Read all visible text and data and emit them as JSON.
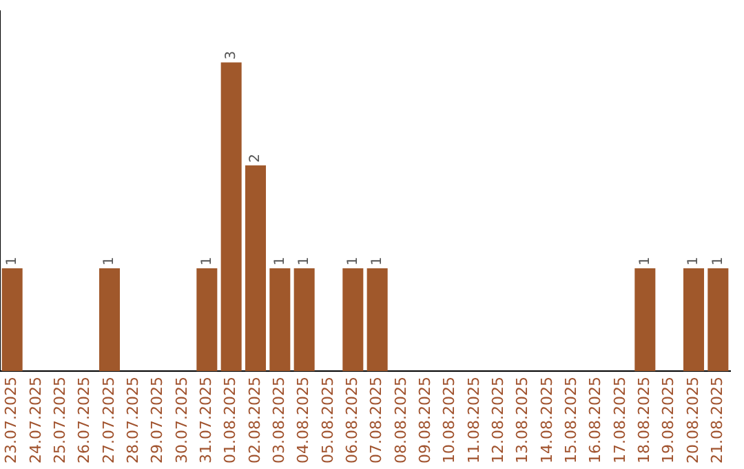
{
  "chart_data": {
    "type": "bar",
    "categories": [
      "23.07.2025",
      "24.07.2025",
      "25.07.2025",
      "26.07.2025",
      "27.07.2025",
      "28.07.2025",
      "29.07.2025",
      "30.07.2025",
      "31.07.2025",
      "01.08.2025",
      "02.08.2025",
      "03.08.2025",
      "04.08.2025",
      "05.08.2025",
      "06.08.2025",
      "07.08.2025",
      "08.08.2025",
      "09.08.2025",
      "10.08.2025",
      "11.08.2025",
      "12.08.2025",
      "13.08.2025",
      "14.08.2025",
      "15.08.2025",
      "16.08.2025",
      "17.08.2025",
      "18.08.2025",
      "19.08.2025",
      "20.08.2025",
      "21.08.2025"
    ],
    "values": [
      1,
      0,
      0,
      0,
      1,
      0,
      0,
      0,
      1,
      3,
      2,
      1,
      1,
      0,
      1,
      1,
      0,
      0,
      0,
      0,
      0,
      0,
      0,
      0,
      0,
      0,
      1,
      0,
      1,
      1
    ],
    "value_labels": [
      "1",
      null,
      null,
      null,
      "1",
      null,
      null,
      null,
      "1",
      "3",
      "2",
      "1",
      "1",
      null,
      "1",
      "1",
      null,
      null,
      null,
      null,
      null,
      null,
      null,
      null,
      null,
      null,
      "1",
      null,
      "1",
      "1"
    ],
    "color": "#a0582b",
    "tick_labels": "x",
    "grid": false,
    "legend": false
  }
}
